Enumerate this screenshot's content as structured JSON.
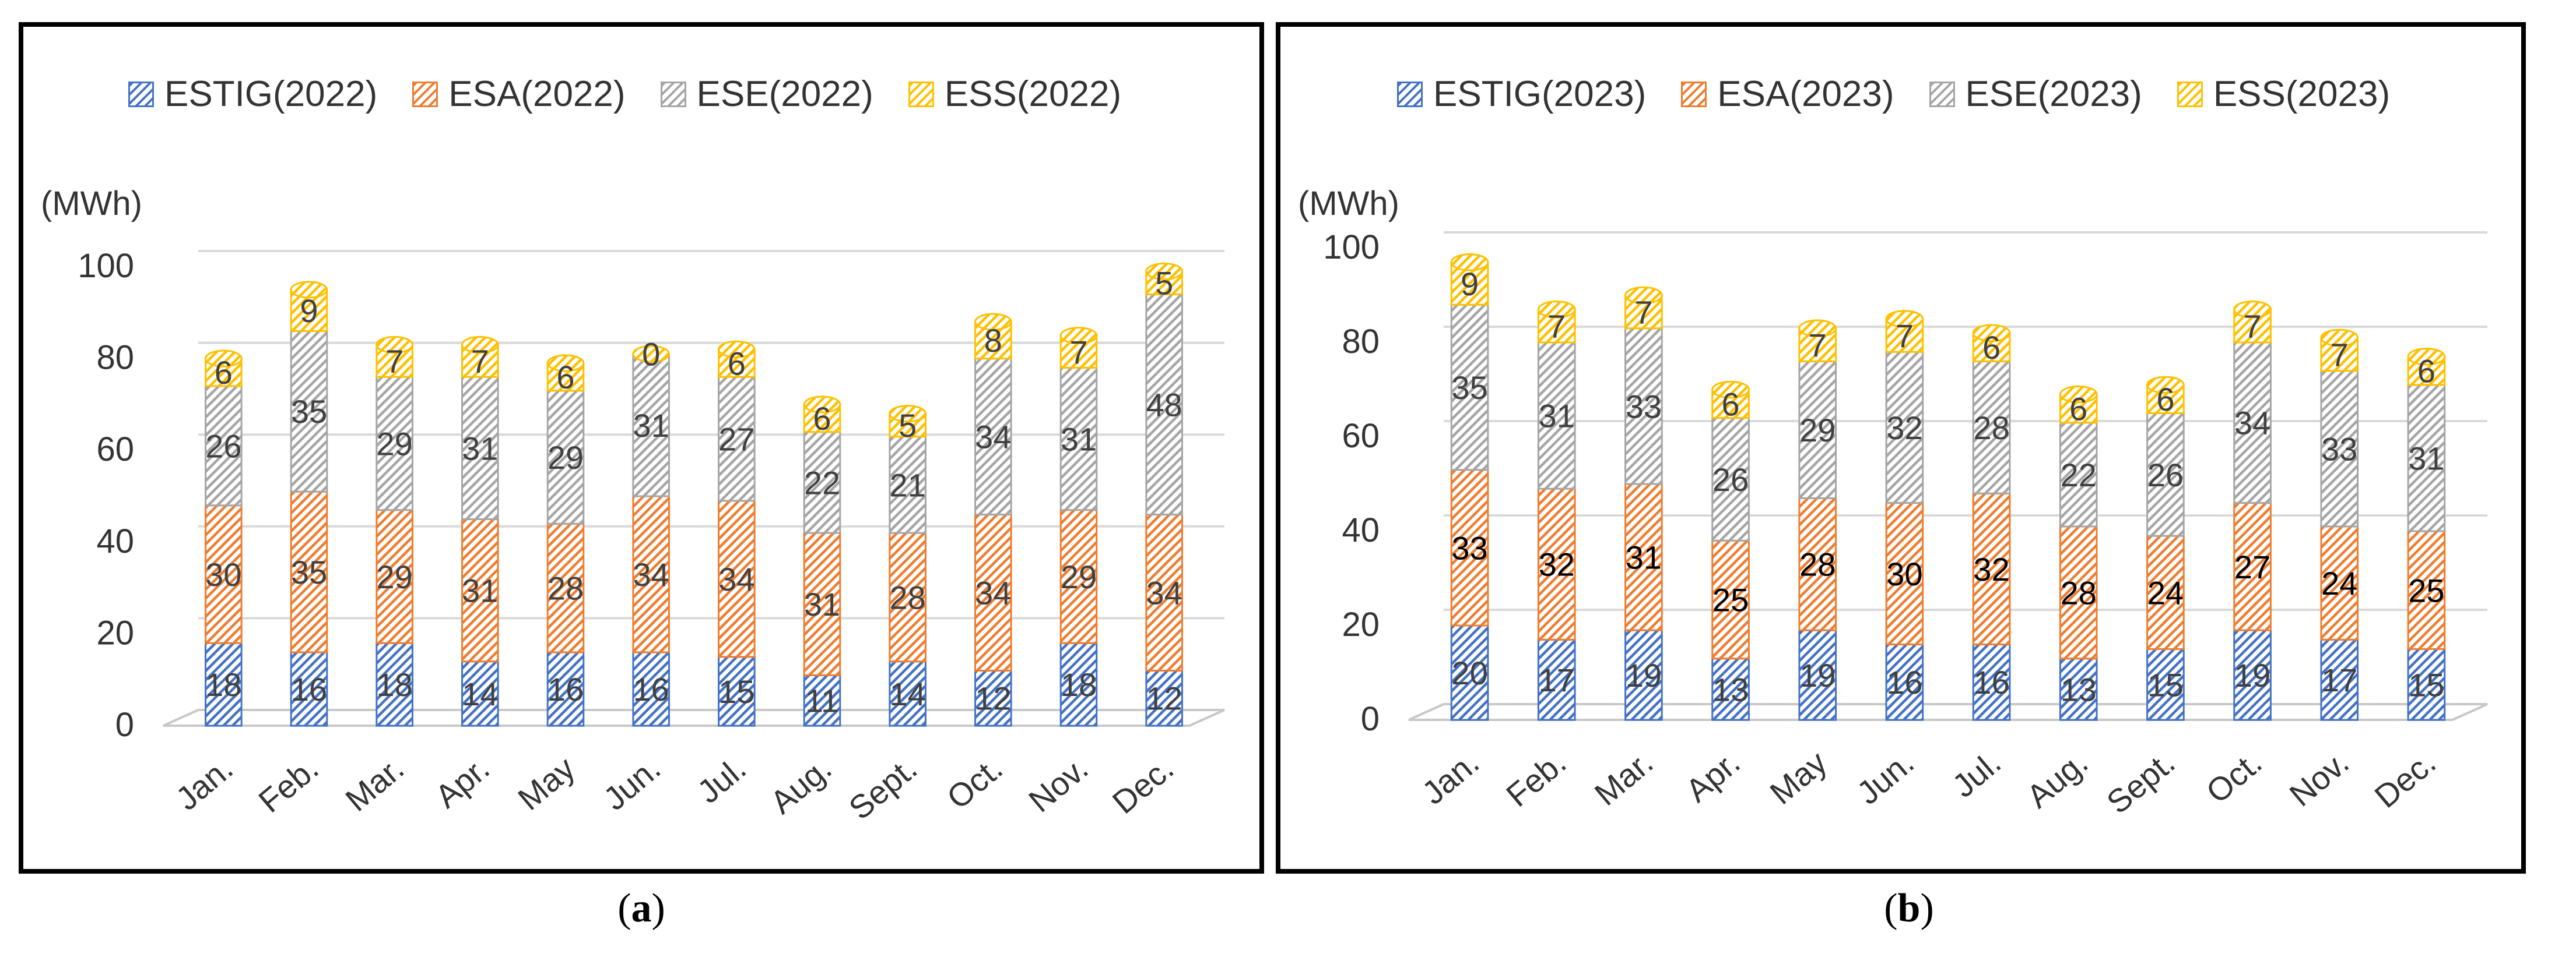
{
  "colors": {
    "ESTIG": "#4472C4",
    "ESA": "#ED7D31",
    "ESE": "#A5A5A5",
    "ESS": "#FFC000"
  },
  "chart_data": [
    {
      "panel": "a",
      "type": "bar",
      "stacked": true,
      "unit_label": "(MWh)",
      "categories": [
        "Jan.",
        "Feb.",
        "Mar.",
        "Apr.",
        "May",
        "Jun.",
        "Jul.",
        "Aug.",
        "Sept.",
        "Oct.",
        "Nov.",
        "Dec."
      ],
      "ylim": [
        0,
        100
      ],
      "yticks": [
        0,
        20,
        40,
        60,
        80,
        100
      ],
      "grid": true,
      "legend_position": "top",
      "series": [
        {
          "name": "ESTIG(2022)",
          "key": "ESTIG",
          "values": [
            18,
            16,
            18,
            14,
            16,
            16,
            15,
            11,
            14,
            12,
            18,
            12
          ]
        },
        {
          "name": "ESA(2022)",
          "key": "ESA",
          "values": [
            30,
            35,
            29,
            31,
            28,
            34,
            34,
            31,
            28,
            34,
            29,
            34
          ]
        },
        {
          "name": "ESE(2022)",
          "key": "ESE",
          "values": [
            26,
            35,
            29,
            31,
            29,
            31,
            27,
            22,
            21,
            34,
            31,
            48
          ]
        },
        {
          "name": "ESS(2022)",
          "key": "ESS",
          "values": [
            6,
            9,
            7,
            7,
            6,
            0,
            6,
            6,
            5,
            8,
            7,
            5
          ]
        }
      ]
    },
    {
      "panel": "b",
      "type": "bar",
      "stacked": true,
      "unit_label": "(MWh)",
      "categories": [
        "Jan.",
        "Feb.",
        "Mar.",
        "Apr.",
        "May",
        "Jun.",
        "Jul.",
        "Aug.",
        "Sept.",
        "Oct.",
        "Nov.",
        "Dec."
      ],
      "ylim": [
        0,
        100
      ],
      "yticks": [
        0,
        20,
        40,
        60,
        80,
        100
      ],
      "grid": true,
      "legend_position": "top",
      "series": [
        {
          "name": "ESTIG(2023)",
          "key": "ESTIG",
          "values": [
            20,
            17,
            19,
            13,
            19,
            16,
            16,
            13,
            15,
            19,
            17,
            15
          ]
        },
        {
          "name": "ESA(2023)",
          "key": "ESA",
          "values": [
            33,
            32,
            31,
            25,
            28,
            30,
            32,
            28,
            24,
            27,
            24,
            25
          ]
        },
        {
          "name": "ESE(2023)",
          "key": "ESE",
          "values": [
            35,
            31,
            33,
            26,
            29,
            32,
            28,
            22,
            26,
            34,
            33,
            31
          ]
        },
        {
          "name": "ESS(2023)",
          "key": "ESS",
          "values": [
            9,
            7,
            7,
            6,
            7,
            7,
            6,
            6,
            6,
            7,
            7,
            6
          ]
        }
      ]
    }
  ],
  "captions": [
    {
      "open": "(",
      "letter": "a",
      "close": ")"
    },
    {
      "open": "(",
      "letter": "b",
      "close": ")"
    }
  ]
}
